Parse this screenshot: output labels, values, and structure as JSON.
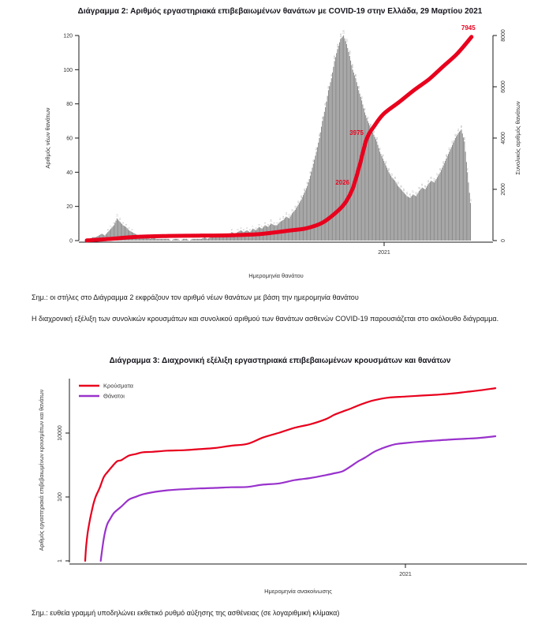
{
  "document": {
    "note_fig2": "Σημ.: οι στήλες στο Διάγραμμα 2 εκφράζουν τον αριθμό νέων θανάτων με βάση την ημερομηνία θανάτου",
    "paragraph": "Η διαχρονική εξέλιξη των συνολικών κρουσμάτων και συνολικού αριθμού των θανάτων ασθενών COVID-19 παρουσιάζεται στο ακόλουθο διάγραμμα.",
    "note_fig3": "Σημ.: ευθεία γραμμή υποδηλώνει εκθετικό ρυθμό αύξησης της ασθένειας (σε λογαριθμική κλίμακα)"
  },
  "colors": {
    "bar": "#8c8c8c",
    "bar_label": "#9e9e9e",
    "red": "#e8001d",
    "purple": "#9932cc",
    "axis": "#1a1a1a",
    "axis_text": "#333333"
  },
  "chart_data": [
    {
      "type": "bar",
      "title": "Διάγραμμα 2: Αριθμός εργαστηριακά επιβεβαιωμένων θανάτων με COVID-19 στην Ελλάδα, 29 Μαρτίου 2021",
      "xlabel": "Ημερομηνία θανάτου",
      "x_tick_labels": [
        "2021"
      ],
      "ylabel_left": "Αριθμός νέων θανάτων",
      "ylim_left": [
        0,
        120
      ],
      "yticks_left": [
        0,
        20,
        40,
        60,
        80,
        100,
        120
      ],
      "ylabel_right": "Συνολικός αριθμός θανάτων",
      "ylim_right": [
        0,
        8000
      ],
      "yticks_right": [
        0,
        2000,
        4000,
        6000,
        8000
      ],
      "grid": false,
      "bars": {
        "name": "Νέοι θάνατοι ανά ημερομηνία θανάτου",
        "start_date": "2020-03-12",
        "step_days": 3,
        "values": [
          1,
          1,
          2,
          2,
          3,
          4,
          3,
          5,
          7,
          9,
          13,
          11,
          9,
          8,
          6,
          5,
          4,
          3,
          3,
          2,
          2,
          1,
          2,
          1,
          1,
          1,
          1,
          1,
          0,
          1,
          1,
          0,
          1,
          1,
          0,
          1,
          1,
          1,
          1,
          2,
          1,
          2,
          2,
          2,
          3,
          3,
          4,
          3,
          5,
          4,
          5,
          6,
          5,
          6,
          5,
          7,
          6,
          8,
          7,
          9,
          8,
          10,
          9,
          9,
          11,
          12,
          14,
          13,
          16,
          18,
          21,
          24,
          28,
          32,
          38,
          45,
          52,
          60,
          70,
          78,
          88,
          95,
          105,
          112,
          118,
          120,
          115,
          108,
          100,
          95,
          88,
          82,
          75,
          70,
          66,
          62,
          58,
          52,
          48,
          44,
          40,
          37,
          35,
          32,
          30,
          28,
          26,
          25,
          27,
          26,
          29,
          31,
          30,
          33,
          35,
          34,
          37,
          40,
          44,
          48,
          52,
          56,
          60,
          63,
          65,
          58,
          40,
          22
        ]
      },
      "cumulative": {
        "name": "Συνολικός αριθμός θανάτων",
        "points": [
          [
            0,
            5
          ],
          [
            19,
            55
          ],
          [
            50,
            145
          ],
          [
            81,
            180
          ],
          [
            111,
            193
          ],
          [
            142,
            210
          ],
          [
            173,
            260
          ],
          [
            203,
            400
          ],
          [
            218,
            480
          ],
          [
            234,
            700
          ],
          [
            249,
            1150
          ],
          [
            257,
            1500
          ],
          [
            264,
            2026
          ],
          [
            271,
            2950
          ],
          [
            278,
            3975
          ],
          [
            286,
            4500
          ],
          [
            295,
            4950
          ],
          [
            310,
            5400
          ],
          [
            326,
            5900
          ],
          [
            340,
            6300
          ],
          [
            354,
            6800
          ],
          [
            368,
            7300
          ],
          [
            382,
            7945
          ]
        ]
      },
      "annotations": [
        {
          "day": 264,
          "label": "2026"
        },
        {
          "day": 278,
          "label": "3975"
        },
        {
          "day": 382,
          "label": "7945"
        }
      ]
    },
    {
      "type": "line",
      "yscale": "log",
      "title": "Διάγραμμα 3: Διαχρονική εξέλιξη εργαστηριακά επιβεβαιωμένων κρουσμάτων και θανάτων",
      "xlabel": "Ημερομηνία ανακοίνωσης",
      "x_tick_labels": [
        "2021"
      ],
      "ylabel": "Αριθμός εργαστηριακά επιβεβαιωμένων κρουσμάτων και θανάτων",
      "yticks": [
        1,
        100,
        10000
      ],
      "grid": false,
      "legend_position": "top-left",
      "series": [
        {
          "name": "Κρούσματα",
          "color": "#e8001d",
          "start_date": "2020-02-26",
          "points": [
            [
              0,
              1
            ],
            [
              1,
              3
            ],
            [
              3,
              10
            ],
            [
              7,
              45
            ],
            [
              10,
              99
            ],
            [
              14,
              190
            ],
            [
              18,
              418
            ],
            [
              22,
              624
            ],
            [
              26,
              892
            ],
            [
              31,
              1314
            ],
            [
              35,
              1415
            ],
            [
              42,
              1955
            ],
            [
              49,
              2207
            ],
            [
              56,
              2517
            ],
            [
              65,
              2591
            ],
            [
              80,
              2810
            ],
            [
              96,
              2918
            ],
            [
              110,
              3134
            ],
            [
              126,
              3409
            ],
            [
              141,
              4012
            ],
            [
              157,
              4587
            ],
            [
              172,
              7222
            ],
            [
              188,
              10317
            ],
            [
              203,
              14738
            ],
            [
              218,
              18886
            ],
            [
              233,
              27334
            ],
            [
              241,
              37196
            ],
            [
              249,
              46892
            ],
            [
              257,
              58187
            ],
            [
              264,
              72510
            ],
            [
              271,
              87812
            ],
            [
              279,
              105271
            ],
            [
              293,
              127557
            ],
            [
              310,
              138850
            ],
            [
              325,
              149097
            ],
            [
              341,
              158716
            ],
            [
              355,
              172824
            ],
            [
              369,
              194902
            ],
            [
              383,
              219247
            ],
            [
              397,
              254031
            ]
          ]
        },
        {
          "name": "Θάνατοι",
          "color": "#9932cc",
          "start_date": "2020-02-26",
          "points": [
            [
              15,
              1
            ],
            [
              18,
              5
            ],
            [
              21,
              13
            ],
            [
              24,
              20
            ],
            [
              28,
              32
            ],
            [
              35,
              50
            ],
            [
              42,
              81
            ],
            [
              49,
              101
            ],
            [
              56,
              121
            ],
            [
              65,
              140
            ],
            [
              80,
              162
            ],
            [
              96,
              175
            ],
            [
              110,
              185
            ],
            [
              126,
              192
            ],
            [
              141,
              201
            ],
            [
              157,
              206
            ],
            [
              172,
              243
            ],
            [
              188,
              266
            ],
            [
              203,
              338
            ],
            [
              218,
              391
            ],
            [
              233,
              482
            ],
            [
              241,
              549
            ],
            [
              249,
              635
            ],
            [
              257,
              909
            ],
            [
              264,
              1288
            ],
            [
              271,
              1714
            ],
            [
              279,
              2517
            ],
            [
              286,
              3194
            ],
            [
              293,
              3840
            ],
            [
              300,
              4457
            ],
            [
              310,
              4881
            ],
            [
              325,
              5421
            ],
            [
              341,
              5878
            ],
            [
              355,
              6321
            ],
            [
              369,
              6664
            ],
            [
              383,
              7091
            ],
            [
              397,
              7945
            ]
          ]
        }
      ]
    }
  ]
}
